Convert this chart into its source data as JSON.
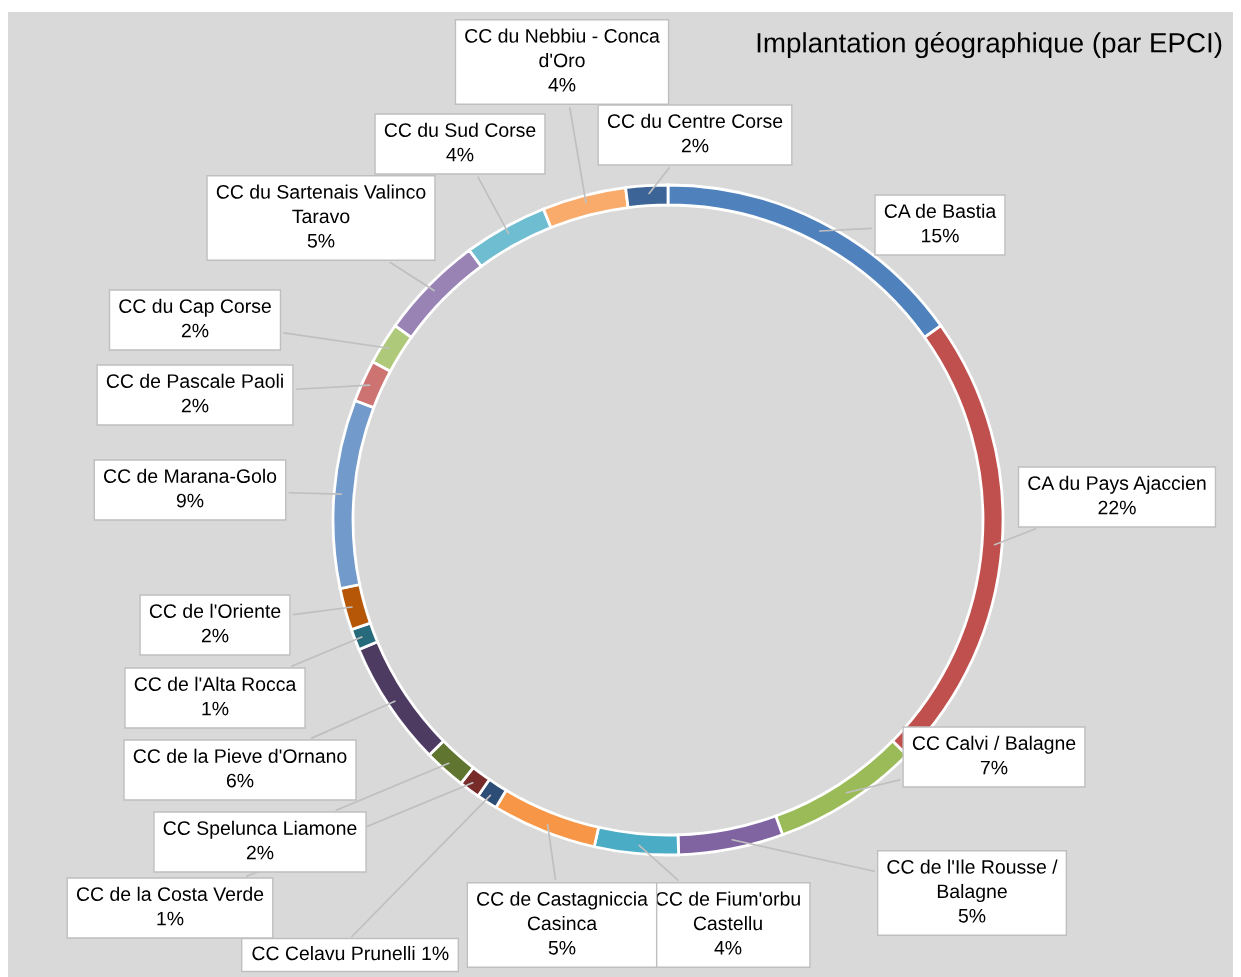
{
  "chart_data": {
    "type": "donut",
    "title": "Implantation géographique (par EPCI)",
    "categories": [
      "CA de Bastia",
      "CA du Pays Ajaccien",
      "CC Calvi / Balagne",
      "CC de l'Ile Rousse / Balagne",
      "CC de Fium'orbu Castellu",
      "CC de Castagniccia Casinca",
      "CC Celavu Prunelli",
      "CC de la Costa Verde",
      "CC Spelunca Liamone",
      "CC de la Pieve d'Ornano",
      "CC de l'Alta Rocca",
      "CC de l'Oriente",
      "CC de Marana-Golo",
      "CC de Pascale Paoli",
      "CC du Cap Corse",
      "CC du Sartenais Valinco Taravo",
      "CC du Sud Corse",
      "CC du Nebbiu - Conca d'Oro",
      "CC du Centre Corse"
    ],
    "values": [
      15,
      22,
      7,
      5,
      4,
      5,
      1,
      1,
      2,
      6,
      1,
      2,
      9,
      2,
      2,
      5,
      4,
      4,
      2
    ],
    "value_labels": [
      "15%",
      "22%",
      "7%",
      "5%",
      "4%",
      "5%",
      "1%",
      "1%",
      "2%",
      "6%",
      "1%",
      "2%",
      "9%",
      "2%",
      "2%",
      "5%",
      "4%",
      "4%",
      "2%"
    ],
    "colors": [
      "#4f81bd",
      "#c0504d",
      "#9bbb59",
      "#8064a2",
      "#4bacc6",
      "#f79646",
      "#2c4d75",
      "#772c2a",
      "#5f7530",
      "#4d3b62",
      "#276a7c",
      "#b65708",
      "#729aca",
      "#cd7371",
      "#afc97a",
      "#9983b5",
      "#6fbdd1",
      "#f9ab6b",
      "#3c6496"
    ],
    "legend": false
  }
}
